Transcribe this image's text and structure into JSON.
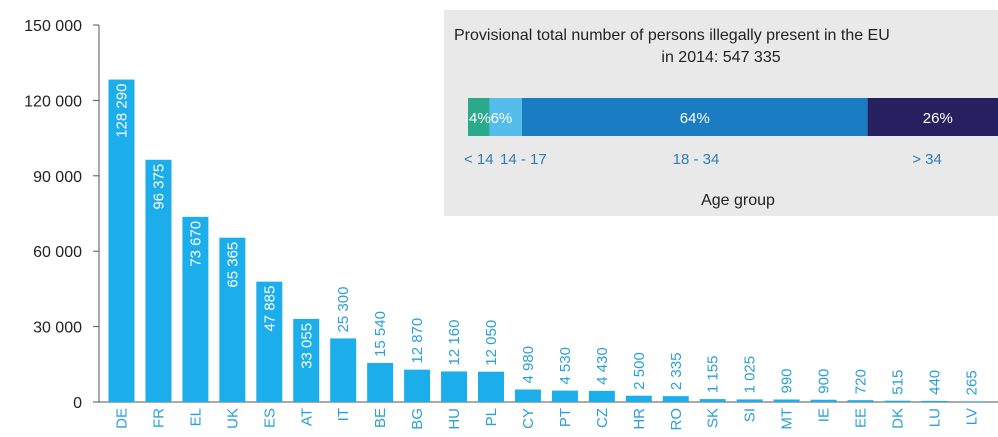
{
  "chart_data": [
    {
      "type": "bar",
      "categories": [
        "DE",
        "FR",
        "EL",
        "UK",
        "ES",
        "AT",
        "IT",
        "BE",
        "BG",
        "HU",
        "PL",
        "CY",
        "PT",
        "CZ",
        "HR",
        "RO",
        "SK",
        "SI",
        "MT",
        "IE",
        "EE",
        "DK",
        "LU",
        "LV"
      ],
      "values": [
        128290,
        96375,
        73670,
        65365,
        47885,
        33055,
        25300,
        15540,
        12870,
        12160,
        12050,
        4980,
        4530,
        4430,
        2500,
        2335,
        1155,
        1025,
        990,
        900,
        720,
        515,
        440,
        265
      ],
      "value_labels": [
        "128 290",
        "96 375",
        "73 670",
        "65 365",
        "47 885",
        "33 055",
        "25 300",
        "15 540",
        "12 870",
        "12 160",
        "12 050",
        "4 980",
        "4 530",
        "4 430",
        "2 500",
        "2 335",
        "1 155",
        "1 025",
        "990",
        "900",
        "720",
        "515",
        "440",
        "265"
      ],
      "yticks": [
        0,
        30000,
        60000,
        90000,
        120000,
        150000
      ],
      "ytick_labels": [
        "0",
        "30 000",
        "60 000",
        "90 000",
        "120 000",
        "150 000"
      ],
      "ylim": [
        0,
        150000
      ],
      "title": "",
      "xlabel": "",
      "ylabel": "",
      "grid": false,
      "colors": {
        "bar": "#1cadeb",
        "label_inside": "#ffffff",
        "label_outside": "#2a9fd8",
        "axis": "#555555"
      }
    },
    {
      "type": "bar",
      "orientation": "horizontal-stacked",
      "title": "Provisional total number of persons illegally present in the EU in 2014: 547 335",
      "title_lines": [
        "Provisional total number of persons illegally present in the EU",
        "in 2014: 547 335"
      ],
      "categories": [
        "< 14",
        "14 - 17",
        "18 - 34",
        "> 34"
      ],
      "values": [
        4,
        6,
        64,
        26
      ],
      "value_labels": [
        "4%",
        "6%",
        "64%",
        "26%"
      ],
      "xlabel": "Age group",
      "colors": {
        "segments": [
          "#2aaa8a",
          "#55bde9",
          "#1a7cc2",
          "#272060"
        ],
        "panel": "#e9e9e9",
        "category_text": "#2e7cb8"
      }
    }
  ]
}
